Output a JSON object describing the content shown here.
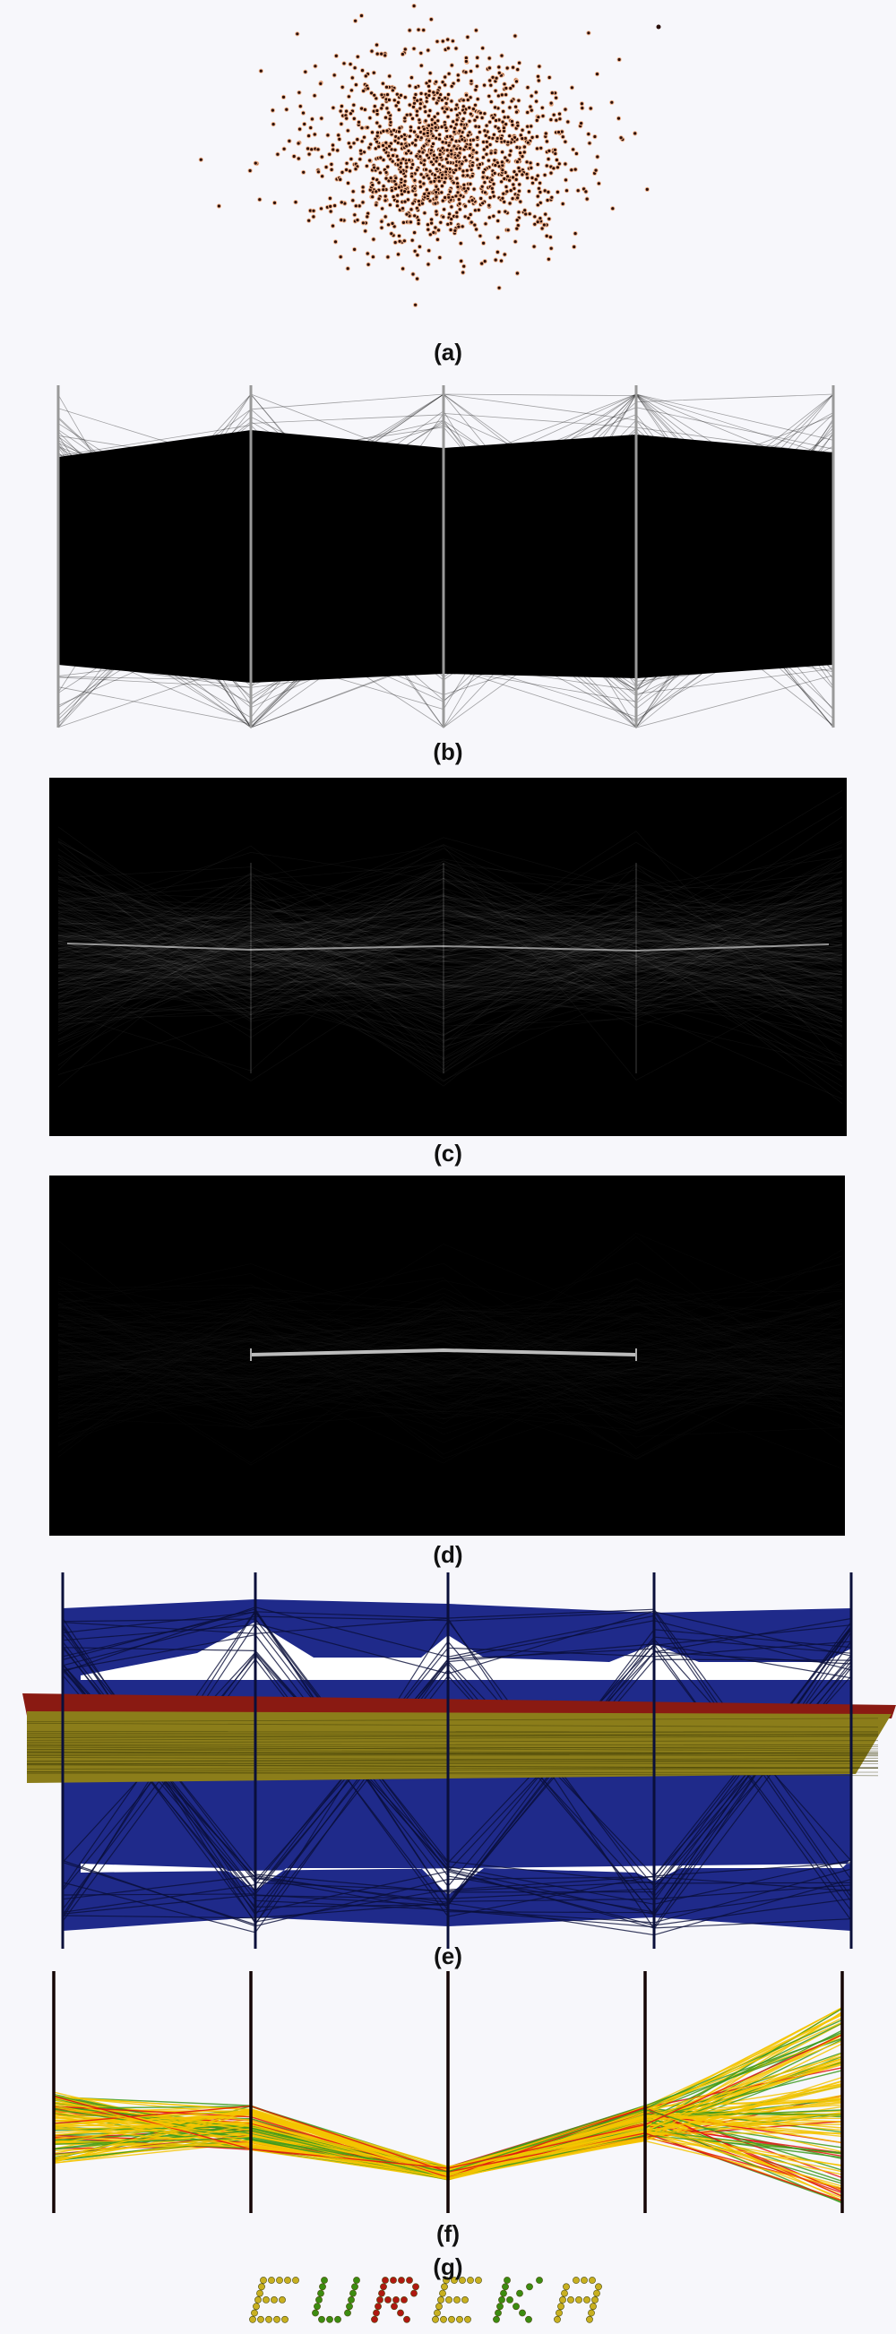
{
  "figure": {
    "captions": {
      "a": "(a)",
      "b": "(b)",
      "c": "(c)",
      "d": "(d)",
      "e": "(e)",
      "f": "(f)",
      "g": "(g)"
    },
    "eureka_text": "EUREKA",
    "colors": {
      "background": "#f7f7fb",
      "scatter_point": "#2a0f0a",
      "scatter_halo": "#f2b48c",
      "axis_gray": "#999999",
      "navy": "#1f2a8a",
      "dark_red": "#8a1a12",
      "olive": "#8b7d1a",
      "yellow": "#f5c400",
      "red": "#e31010",
      "green": "#3c9a1c",
      "eureka_green": "#3c8c10",
      "eureka_red": "#b01810",
      "eureka_yellow": "#c8b020"
    }
  }
}
